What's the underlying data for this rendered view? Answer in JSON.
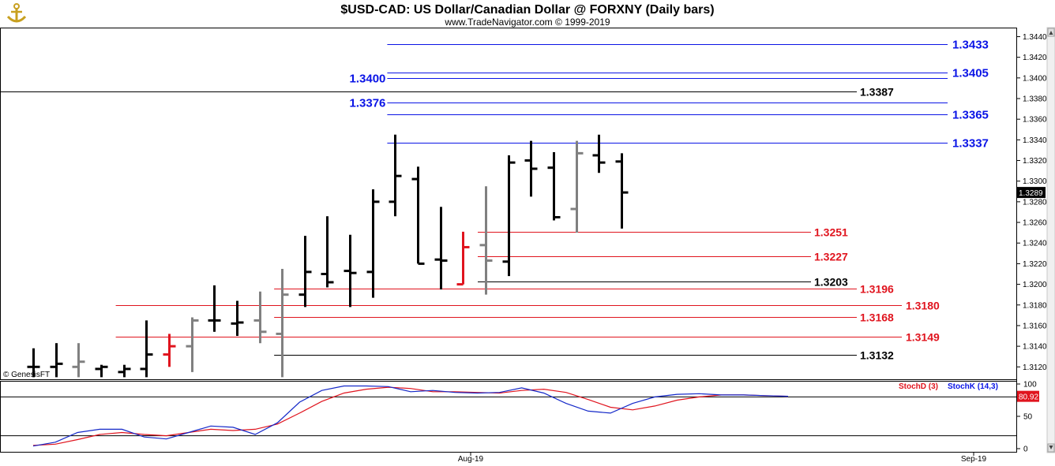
{
  "header": {
    "title": "$USD-CAD:  US Dollar/Canadian Dollar @ FORXNY  (Daily bars)",
    "subtitle": "www.TradeNavigator.com © 1999-2019",
    "logo_icon": "anchor-logo-icon"
  },
  "watermark": "© GenesisFT",
  "colors": {
    "black_bar": "#000000",
    "gray_bar": "#808080",
    "red_bar": "#e0141e",
    "blue_level": "#0a14e6",
    "red_level": "#e0141e",
    "black_level": "#000000",
    "stoch_d": "#e0141e",
    "stoch_k": "#1428c8"
  },
  "chart_data": [
    {
      "type": "ohlc",
      "title": "$USD-CAD:  US Dollar/Canadian Dollar @ FORXNY  (Daily bars)",
      "ylim": [
        1.3108,
        1.3448
      ],
      "y_ticks": [
        "1.3440",
        "1.3420",
        "1.3400",
        "1.3380",
        "1.3360",
        "1.3340",
        "1.3320",
        "1.3300",
        "1.3280",
        "1.3260",
        "1.3240",
        "1.3220",
        "1.3200",
        "1.3180",
        "1.3160",
        "1.3140",
        "1.3120"
      ],
      "x_labels": [
        "Aug-19",
        "Sep-19"
      ],
      "last_price": "1.3289",
      "bars": [
        {
          "color": "black",
          "open": 1.312,
          "high": 1.3138,
          "low": 1.311,
          "close": 1.312
        },
        {
          "color": "black",
          "open": 1.312,
          "high": 1.3143,
          "low": 1.311,
          "close": 1.3123
        },
        {
          "color": "gray",
          "open": 1.312,
          "high": 1.3143,
          "low": 1.311,
          "close": 1.3125
        },
        {
          "color": "black",
          "open": 1.3118,
          "high": 1.3122,
          "low": 1.311,
          "close": 1.312
        },
        {
          "color": "black",
          "open": 1.3115,
          "high": 1.3122,
          "low": 1.311,
          "close": 1.3118
        },
        {
          "color": "black",
          "open": 1.3118,
          "high": 1.3165,
          "low": 1.311,
          "close": 1.3132
        },
        {
          "color": "red",
          "open": 1.3132,
          "high": 1.3152,
          "low": 1.312,
          "close": 1.314
        },
        {
          "color": "gray",
          "open": 1.314,
          "high": 1.3168,
          "low": 1.3115,
          "close": 1.3165
        },
        {
          "color": "black",
          "open": 1.3165,
          "high": 1.3199,
          "low": 1.3154,
          "close": 1.3165
        },
        {
          "color": "black",
          "open": 1.3162,
          "high": 1.3184,
          "low": 1.315,
          "close": 1.3163
        },
        {
          "color": "gray",
          "open": 1.3165,
          "high": 1.3193,
          "low": 1.3143,
          "close": 1.3154
        },
        {
          "color": "gray",
          "open": 1.3152,
          "high": 1.3215,
          "low": 1.311,
          "close": 1.319
        },
        {
          "color": "black",
          "open": 1.319,
          "high": 1.3247,
          "low": 1.3178,
          "close": 1.3212
        },
        {
          "color": "black",
          "open": 1.321,
          "high": 1.3266,
          "low": 1.3197,
          "close": 1.3202
        },
        {
          "color": "black",
          "open": 1.3213,
          "high": 1.3248,
          "low": 1.3178,
          "close": 1.3211
        },
        {
          "color": "black",
          "open": 1.3212,
          "high": 1.3292,
          "low": 1.3187,
          "close": 1.328
        },
        {
          "color": "black",
          "open": 1.328,
          "high": 1.3345,
          "low": 1.3266,
          "close": 1.3305
        },
        {
          "color": "black",
          "open": 1.3302,
          "high": 1.3314,
          "low": 1.322,
          "close": 1.322
        },
        {
          "color": "black",
          "open": 1.3224,
          "high": 1.3275,
          "low": 1.3195,
          "close": 1.3223
        },
        {
          "color": "red",
          "open": 1.32,
          "high": 1.3251,
          "low": 1.32,
          "close": 1.3236
        },
        {
          "color": "gray",
          "open": 1.3238,
          "high": 1.3295,
          "low": 1.319,
          "close": 1.3223
        },
        {
          "color": "black",
          "open": 1.3222,
          "high": 1.3325,
          "low": 1.3208,
          "close": 1.3318
        },
        {
          "color": "black",
          "open": 1.332,
          "high": 1.3339,
          "low": 1.3285,
          "close": 1.3312
        },
        {
          "color": "black",
          "open": 1.3313,
          "high": 1.3328,
          "low": 1.3262,
          "close": 1.3265
        },
        {
          "color": "gray",
          "open": 1.3273,
          "high": 1.3339,
          "low": 1.325,
          "close": 1.3327
        },
        {
          "color": "black",
          "open": 1.3325,
          "high": 1.3345,
          "low": 1.3308,
          "close": 1.3318
        },
        {
          "color": "black",
          "open": 1.3319,
          "high": 1.3327,
          "low": 1.3254,
          "close": 1.3289
        }
      ],
      "levels": [
        {
          "value": 1.3433,
          "label": "1.3433",
          "color": "blue",
          "from_bar": 16,
          "label_side": "right"
        },
        {
          "value": 1.3405,
          "label": "1.3405",
          "color": "blue",
          "from_bar": 16,
          "label_side": "right"
        },
        {
          "value": 1.34,
          "label": "1.3400",
          "color": "blue",
          "from_bar": 16,
          "label_side": "left"
        },
        {
          "value": 1.3387,
          "label": "1.3387",
          "color": "black",
          "from_bar": -1,
          "label_side": "short"
        },
        {
          "value": 1.3376,
          "label": "1.3376",
          "color": "blue",
          "from_bar": 16,
          "label_side": "left"
        },
        {
          "value": 1.3365,
          "label": "1.3365",
          "color": "blue",
          "from_bar": 16,
          "label_side": "right"
        },
        {
          "value": 1.3337,
          "label": "1.3337",
          "color": "blue",
          "from_bar": 16,
          "label_side": "right"
        },
        {
          "value": 1.3251,
          "label": "1.3251",
          "color": "red",
          "from_bar": 20,
          "label_side": "mid"
        },
        {
          "value": 1.3227,
          "label": "1.3227",
          "color": "red",
          "from_bar": 20,
          "label_side": "mid"
        },
        {
          "value": 1.3203,
          "label": "1.3203",
          "color": "black",
          "from_bar": 20,
          "label_side": "mid"
        },
        {
          "value": 1.3196,
          "label": "1.3196",
          "color": "red",
          "from_bar": 11,
          "label_side": "short"
        },
        {
          "value": 1.318,
          "label": "1.3180",
          "color": "red",
          "from_bar": 4,
          "label_side": "long"
        },
        {
          "value": 1.3168,
          "label": "1.3168",
          "color": "red",
          "from_bar": 11,
          "label_side": "short"
        },
        {
          "value": 1.3149,
          "label": "1.3149",
          "color": "red",
          "from_bar": 4,
          "label_side": "long"
        },
        {
          "value": 1.3132,
          "label": "1.3132",
          "color": "black",
          "from_bar": 11,
          "label_side": "short"
        }
      ]
    },
    {
      "type": "line",
      "ylim": [
        0,
        100
      ],
      "y_ticks": [
        "100",
        "50",
        "0"
      ],
      "reference_lines": [
        80,
        20
      ],
      "last_value": "80.92",
      "legend": [
        "StochD (3)",
        "StochK (14,3)"
      ],
      "series": [
        {
          "name": "StochD (3)",
          "color": "red",
          "values": [
            5,
            7,
            14,
            22,
            25,
            22,
            20,
            25,
            30,
            28,
            30,
            38,
            55,
            73,
            86,
            92,
            95,
            93,
            88,
            88,
            87,
            86,
            90,
            92,
            87,
            76,
            64,
            60,
            66,
            75,
            80,
            83,
            83,
            82,
            81
          ]
        },
        {
          "name": "StochK (14,3)",
          "color": "blue",
          "values": [
            4,
            10,
            25,
            30,
            30,
            18,
            15,
            25,
            35,
            33,
            22,
            40,
            72,
            90,
            97,
            97,
            96,
            88,
            90,
            87,
            86,
            87,
            94,
            86,
            70,
            58,
            55,
            70,
            80,
            84,
            85,
            83,
            83,
            82,
            81
          ]
        }
      ]
    }
  ]
}
